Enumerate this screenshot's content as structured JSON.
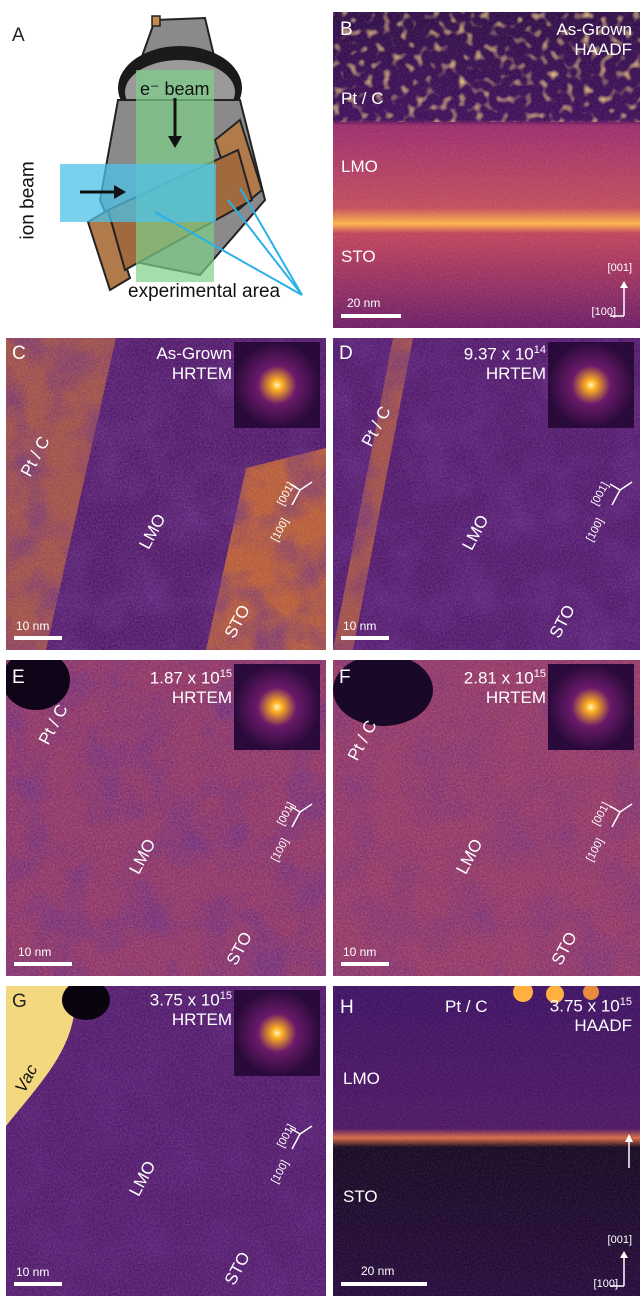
{
  "panels": {
    "A": {
      "letter": "A",
      "labels": {
        "e_beam": "e⁻ beam",
        "ion_beam": "ion beam",
        "experimental_area": "experimental area"
      }
    },
    "B": {
      "letter": "B",
      "condition": "As-Grown",
      "mode": "HAADF",
      "layers": [
        "Pt / C",
        "LMO",
        "STO"
      ],
      "scalebar": "20 nm",
      "axis_vertical": "[001]",
      "axis_horizontal": "[100]"
    },
    "C": {
      "letter": "C",
      "condition": "As-Grown",
      "mode": "HRTEM",
      "layers": [
        "Pt / C",
        "LMO",
        "STO"
      ],
      "scalebar": "10 nm",
      "axis_a": "[001]",
      "axis_b": "[100]"
    },
    "D": {
      "letter": "D",
      "dose_mantissa": "9.37 x 10",
      "dose_exponent": "14",
      "mode": "HRTEM",
      "layers": [
        "Pt / C",
        "LMO",
        "STO"
      ],
      "scalebar": "10 nm",
      "axis_a": "[001]",
      "axis_b": "[100]"
    },
    "E": {
      "letter": "E",
      "dose_mantissa": "1.87 x 10",
      "dose_exponent": "15",
      "mode": "HRTEM",
      "layers": [
        "Pt / C",
        "LMO",
        "STO"
      ],
      "scalebar": "10 nm",
      "axis_a": "[001]",
      "axis_b": "[100]"
    },
    "F": {
      "letter": "F",
      "dose_mantissa": "2.81 x 10",
      "dose_exponent": "15",
      "mode": "HRTEM",
      "layers": [
        "Pt / C",
        "LMO",
        "STO"
      ],
      "scalebar": "10 nm",
      "axis_a": "[001]",
      "axis_b": "[100]"
    },
    "G": {
      "letter": "G",
      "dose_mantissa": "3.75 x 10",
      "dose_exponent": "15",
      "mode": "HRTEM",
      "layers": [
        "Vac",
        "LMO",
        "STO"
      ],
      "scalebar": "10 nm",
      "axis_a": "[001]",
      "axis_b": "[100]"
    },
    "H": {
      "letter": "H",
      "dose_mantissa": "3.75 x 10",
      "dose_exponent": "15",
      "mode": "HAADF",
      "layers": [
        "Pt / C",
        "LMO",
        "STO"
      ],
      "scalebar": "20 nm",
      "axis_vertical": "[001]",
      "axis_horizontal": "[100]"
    }
  }
}
